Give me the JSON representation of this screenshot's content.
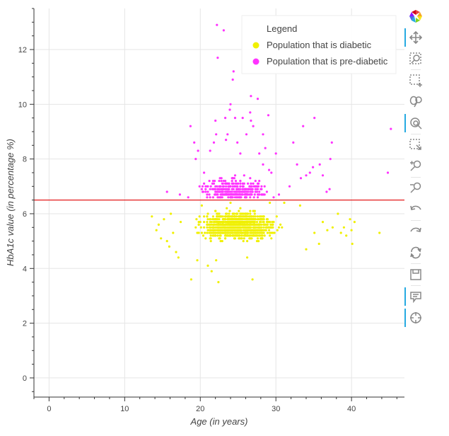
{
  "chart_data": {
    "type": "scatter",
    "title": "",
    "xlabel": "Age (in years)",
    "ylabel": "HbA1c value (in percentage %)",
    "xlim": [
      -2,
      47
    ],
    "ylim": [
      -0.7,
      13.5
    ],
    "xticks": [
      0,
      10,
      20,
      30,
      40
    ],
    "yticks": [
      0,
      2,
      4,
      6,
      8,
      10,
      12
    ],
    "grid": true,
    "legend": {
      "title": "Legend",
      "placement": "top-right"
    },
    "threshold_line": {
      "y": 6.5,
      "color": "#e41a1c"
    },
    "series": [
      {
        "name": "Population that is diabetic",
        "color": "#f0f000",
        "summary": {
          "x_min": 13.5,
          "x_max": 43.8,
          "y_min": 3.5,
          "y_max": 6.4,
          "approx_points": 1200
        },
        "points": [
          [
            13.6,
            5.9
          ],
          [
            14.2,
            5.4
          ],
          [
            14.5,
            5.6
          ],
          [
            14.8,
            5.1
          ],
          [
            15.2,
            5.8
          ],
          [
            15.6,
            5.0
          ],
          [
            15.9,
            4.8
          ],
          [
            16.1,
            6.0
          ],
          [
            16.4,
            5.3
          ],
          [
            16.8,
            4.6
          ],
          [
            17.1,
            4.4
          ],
          [
            17.4,
            5.7
          ],
          [
            18.8,
            3.6
          ],
          [
            19.6,
            4.3
          ],
          [
            21.0,
            4.1
          ],
          [
            21.5,
            3.9
          ],
          [
            22.4,
            3.5
          ],
          [
            22.1,
            4.3
          ],
          [
            26.9,
            3.6
          ],
          [
            26.2,
            4.4
          ],
          [
            34.0,
            4.7
          ],
          [
            35.1,
            5.3
          ],
          [
            35.7,
            4.9
          ],
          [
            36.2,
            5.7
          ],
          [
            36.8,
            5.4
          ],
          [
            37.5,
            5.5
          ],
          [
            38.2,
            6.0
          ],
          [
            38.6,
            5.3
          ],
          [
            39.0,
            5.5
          ],
          [
            39.3,
            5.2
          ],
          [
            39.8,
            5.8
          ],
          [
            40.0,
            5.4
          ],
          [
            40.4,
            5.7
          ],
          [
            40.1,
            4.9
          ],
          [
            43.7,
            5.3
          ],
          [
            33.2,
            6.3
          ],
          [
            31.1,
            6.4
          ],
          [
            29.2,
            6.4
          ],
          [
            24.0,
            6.4
          ],
          [
            20.2,
            6.3
          ]
        ]
      },
      {
        "name": "Population that is pre-diabetic",
        "color": "#ff33ff",
        "summary": {
          "x_min": 15.5,
          "x_max": 45.2,
          "y_min": 6.6,
          "y_max": 12.9,
          "approx_points": 350
        },
        "points": [
          [
            15.6,
            6.8
          ],
          [
            17.3,
            6.7
          ],
          [
            18.4,
            6.6
          ],
          [
            18.7,
            9.2
          ],
          [
            19.2,
            8.6
          ],
          [
            19.4,
            8.0
          ],
          [
            19.7,
            8.3
          ],
          [
            20.5,
            7.5
          ],
          [
            21.3,
            8.3
          ],
          [
            21.8,
            8.6
          ],
          [
            22.0,
            9.4
          ],
          [
            22.1,
            8.9
          ],
          [
            22.2,
            12.9
          ],
          [
            22.3,
            11.7
          ],
          [
            23.1,
            12.7
          ],
          [
            23.3,
            9.5
          ],
          [
            23.6,
            8.9
          ],
          [
            23.4,
            8.7
          ],
          [
            23.9,
            9.8
          ],
          [
            24.0,
            10.0
          ],
          [
            24.3,
            10.9
          ],
          [
            24.4,
            11.2
          ],
          [
            24.6,
            9.5
          ],
          [
            24.9,
            8.6
          ],
          [
            25.3,
            8.2
          ],
          [
            25.6,
            9.5
          ],
          [
            25.8,
            7.4
          ],
          [
            26.1,
            8.9
          ],
          [
            26.6,
            9.7
          ],
          [
            26.7,
            10.3
          ],
          [
            27.0,
            9.2
          ],
          [
            27.6,
            10.2
          ],
          [
            27.8,
            8.2
          ],
          [
            28.3,
            7.8
          ],
          [
            28.6,
            8.4
          ],
          [
            29.0,
            9.6
          ],
          [
            29.4,
            7.5
          ],
          [
            30.0,
            8.2
          ],
          [
            30.4,
            6.7
          ],
          [
            31.8,
            7.0
          ],
          [
            32.3,
            8.6
          ],
          [
            32.8,
            7.8
          ],
          [
            33.3,
            7.3
          ],
          [
            33.6,
            9.2
          ],
          [
            34.0,
            7.4
          ],
          [
            34.5,
            7.5
          ],
          [
            34.9,
            7.7
          ],
          [
            35.1,
            9.5
          ],
          [
            35.8,
            7.8
          ],
          [
            36.2,
            7.4
          ],
          [
            36.7,
            6.8
          ],
          [
            37.1,
            6.9
          ],
          [
            37.4,
            8.6
          ],
          [
            37.2,
            8.0
          ],
          [
            44.8,
            7.5
          ],
          [
            45.2,
            9.1
          ],
          [
            26.7,
            9.4
          ],
          [
            28.3,
            8.9
          ]
        ]
      }
    ]
  },
  "toolbar": {
    "logo": "bokeh-logo-icon",
    "tools": [
      {
        "name": "pan-tool",
        "icon": "move-icon",
        "active": true
      },
      {
        "name": "box-zoom-tool",
        "icon": "box-zoom-icon",
        "active": false
      },
      {
        "name": "box-select-tool",
        "icon": "box-select-icon",
        "active": false
      },
      {
        "name": "lasso-select-tool",
        "icon": "lasso-icon",
        "active": false
      },
      {
        "name": "wheel-zoom-tool",
        "icon": "wheel-zoom-icon",
        "active": true
      },
      {
        "name": "tap-tool",
        "icon": "tap-select-icon",
        "active": false
      },
      {
        "name": "zoom-in-tool",
        "icon": "zoom-in-icon",
        "active": false
      },
      {
        "name": "zoom-out-tool",
        "icon": "zoom-out-icon",
        "active": false
      },
      {
        "name": "undo-tool",
        "icon": "undo-icon",
        "active": false
      },
      {
        "name": "redo-tool",
        "icon": "redo-icon",
        "active": false
      },
      {
        "name": "reset-tool",
        "icon": "reset-icon",
        "active": false
      },
      {
        "name": "save-tool",
        "icon": "save-icon",
        "active": false
      },
      {
        "name": "hover-tool",
        "icon": "hover-icon",
        "active": true
      },
      {
        "name": "crosshair-tool",
        "icon": "crosshair-icon",
        "active": true
      }
    ]
  }
}
